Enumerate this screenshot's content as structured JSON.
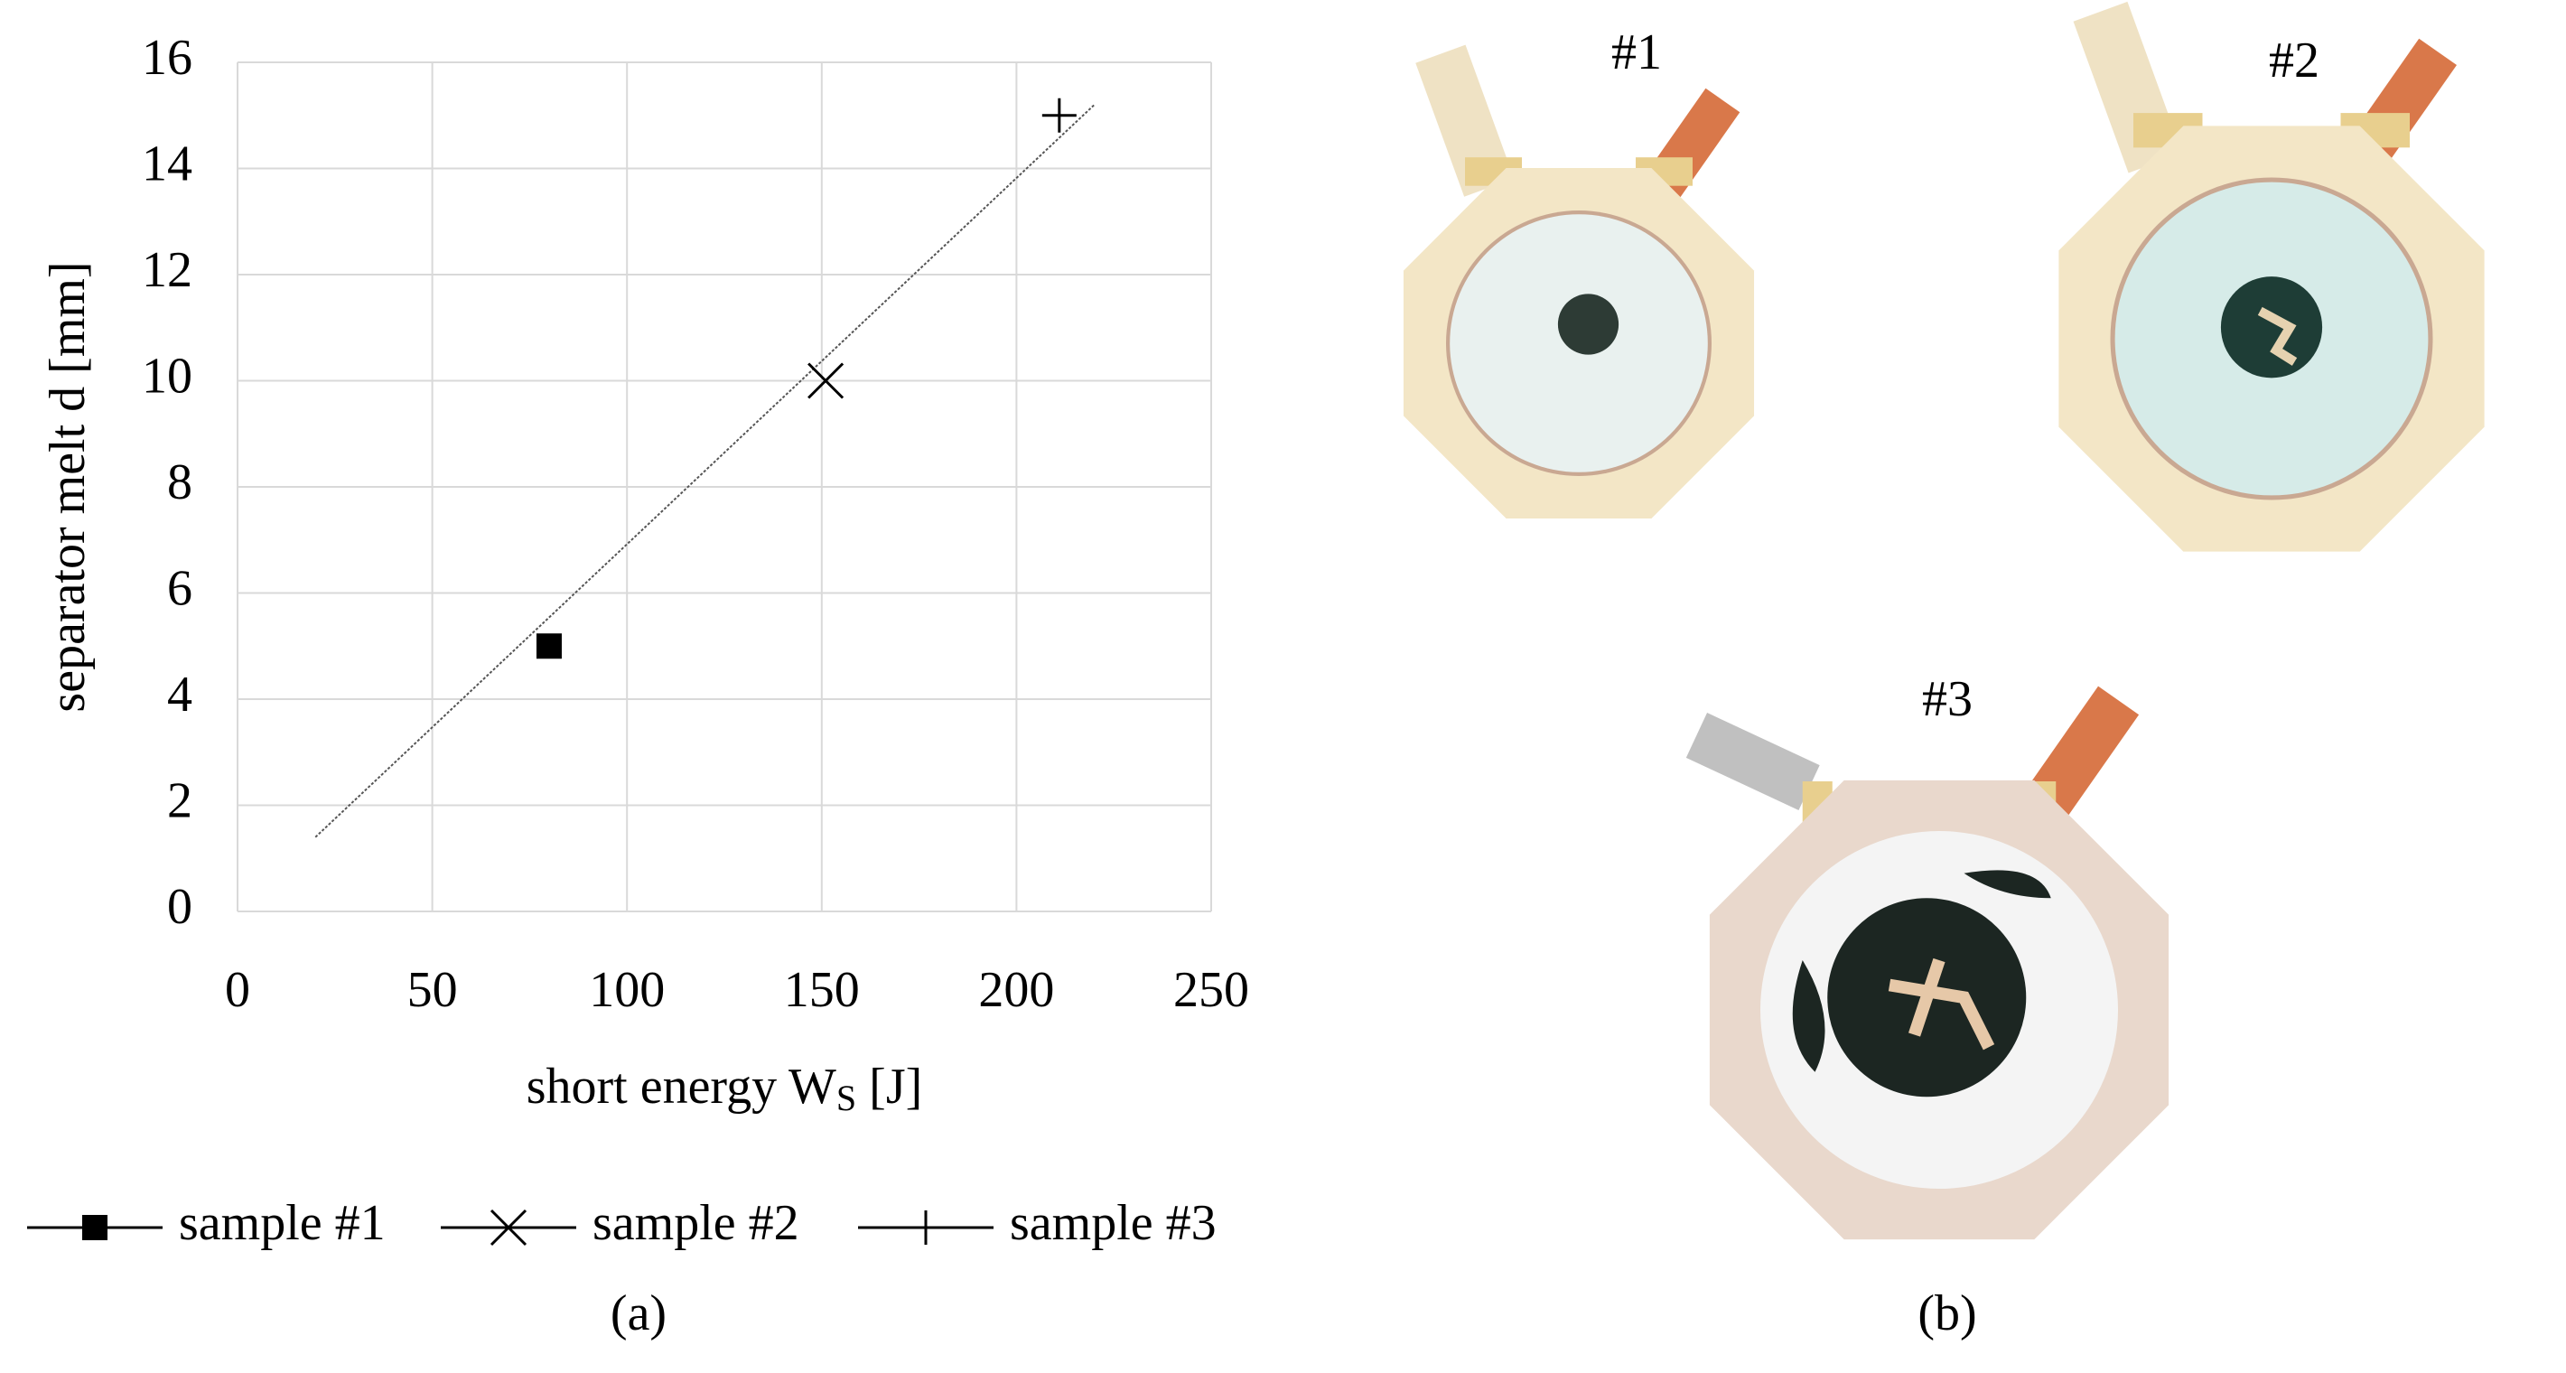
{
  "chart_data": {
    "type": "scatter",
    "ylabel": "separator melt d [mm]",
    "xlabel_parts": [
      "short energy W",
      "S",
      " [J]"
    ],
    "xlim": [
      0,
      250
    ],
    "xticks": [
      0,
      50,
      100,
      150,
      200,
      250
    ],
    "ylim": [
      0,
      16
    ],
    "yticks": [
      0,
      2,
      4,
      6,
      8,
      10,
      12,
      14,
      16
    ],
    "grid": true,
    "series": [
      {
        "name": "sample #1",
        "marker": "square",
        "color": "#000000",
        "x": [
          80
        ],
        "values": [
          5
        ]
      },
      {
        "name": "sample #2",
        "marker": "x",
        "color": "#000000",
        "x": [
          151
        ],
        "values": [
          10
        ]
      },
      {
        "name": "sample #3",
        "marker": "plus",
        "color": "#000000",
        "x": [
          211
        ],
        "values": [
          15
        ]
      }
    ],
    "trendline": {
      "x": [
        20,
        220
      ],
      "values": [
        1.4,
        15.2
      ],
      "color": "#555555"
    },
    "panel_label": "(a)"
  },
  "photos": {
    "panel_label": "(b)",
    "items": [
      {
        "label": "#1"
      },
      {
        "label": "#2"
      },
      {
        "label": "#3"
      }
    ]
  }
}
